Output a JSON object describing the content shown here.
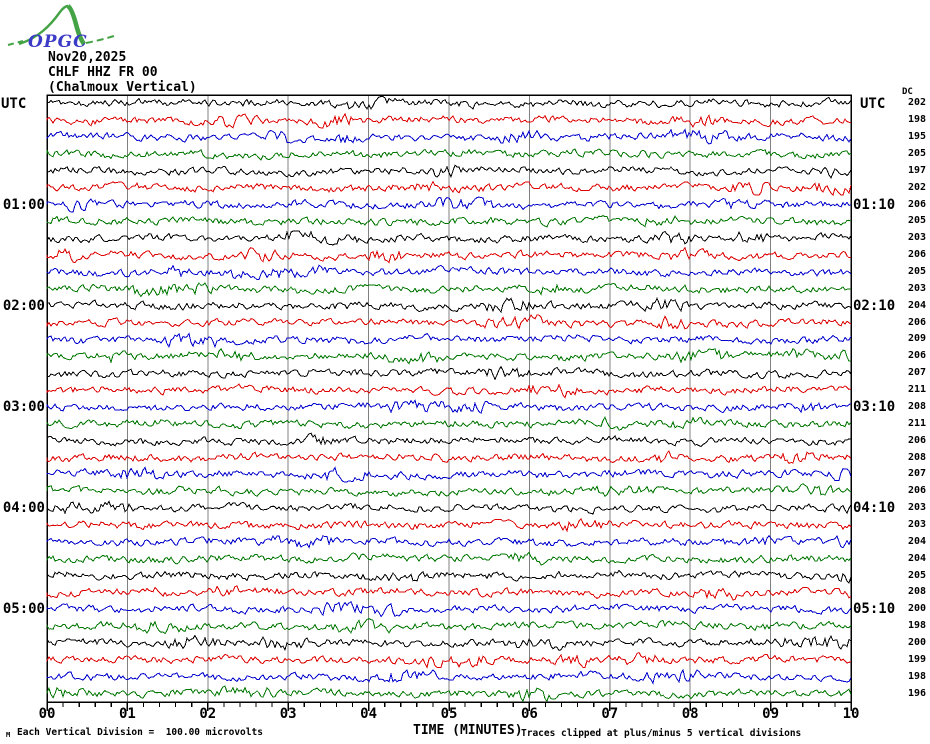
{
  "logo": {
    "text": "OPGC",
    "text_color": "#3b3bc8",
    "curve_color": "#44a344"
  },
  "header": {
    "date": "Nov20,2025",
    "station": "CHLF HHZ FR 00",
    "description": "(Chalmoux Vertical)"
  },
  "axes": {
    "left_header": "UTC",
    "right_header": "UTC",
    "dc_header": "DC",
    "x_label": "TIME (MINUTES)",
    "x_ticks": [
      "00",
      "01",
      "02",
      "03",
      "04",
      "05",
      "06",
      "07",
      "08",
      "09",
      "10"
    ]
  },
  "footer": {
    "scale_note": "Each Vertical Division =  100.00 microvolts",
    "clip_note": "Traces clipped at plus/minus 5 vertical divisions",
    "corner_mark": "M"
  },
  "chart_data": {
    "type": "line",
    "subtype": "helicorder-seismogram",
    "title": "CHLF HHZ FR 00 (Chalmoux Vertical) Nov20,2025",
    "xlabel": "TIME (MINUTES)",
    "x_range_minutes": [
      0,
      10
    ],
    "x_major_tick_minutes": 1,
    "x_minor_ticks_per_major": 5,
    "minutes_per_row": 10,
    "waveform": "continuous ambient seismic noise, no distinct events",
    "amplitude_scale": "Each Vertical Division = 100.00 microvolts",
    "clipping": "plus/minus 5 vertical divisions",
    "grid_color": "#808080",
    "trace_color_cycle": [
      "#000000",
      "#dd0000",
      "#0000cc",
      "#007700"
    ],
    "rows": [
      {
        "utc_start": "00:00",
        "utc_end": "00:10",
        "left_label": "",
        "right_label": "",
        "dc": 202
      },
      {
        "utc_start": "00:10",
        "utc_end": "00:20",
        "left_label": "",
        "right_label": "",
        "dc": 198
      },
      {
        "utc_start": "00:20",
        "utc_end": "00:30",
        "left_label": "",
        "right_label": "",
        "dc": 195
      },
      {
        "utc_start": "00:30",
        "utc_end": "00:40",
        "left_label": "",
        "right_label": "",
        "dc": 205
      },
      {
        "utc_start": "00:40",
        "utc_end": "00:50",
        "left_label": "",
        "right_label": "",
        "dc": 197
      },
      {
        "utc_start": "00:50",
        "utc_end": "01:00",
        "left_label": "",
        "right_label": "",
        "dc": 202
      },
      {
        "utc_start": "01:00",
        "utc_end": "01:10",
        "left_label": "01:00",
        "right_label": "01:10",
        "dc": 206
      },
      {
        "utc_start": "01:10",
        "utc_end": "01:20",
        "left_label": "",
        "right_label": "",
        "dc": 205
      },
      {
        "utc_start": "01:20",
        "utc_end": "01:30",
        "left_label": "",
        "right_label": "",
        "dc": 203
      },
      {
        "utc_start": "01:30",
        "utc_end": "01:40",
        "left_label": "",
        "right_label": "",
        "dc": 206
      },
      {
        "utc_start": "01:40",
        "utc_end": "01:50",
        "left_label": "",
        "right_label": "",
        "dc": 205
      },
      {
        "utc_start": "01:50",
        "utc_end": "02:00",
        "left_label": "",
        "right_label": "",
        "dc": 203
      },
      {
        "utc_start": "02:00",
        "utc_end": "02:10",
        "left_label": "02:00",
        "right_label": "02:10",
        "dc": 204
      },
      {
        "utc_start": "02:10",
        "utc_end": "02:20",
        "left_label": "",
        "right_label": "",
        "dc": 206
      },
      {
        "utc_start": "02:20",
        "utc_end": "02:30",
        "left_label": "",
        "right_label": "",
        "dc": 209
      },
      {
        "utc_start": "02:30",
        "utc_end": "02:40",
        "left_label": "",
        "right_label": "",
        "dc": 206
      },
      {
        "utc_start": "02:40",
        "utc_end": "02:50",
        "left_label": "",
        "right_label": "",
        "dc": 207
      },
      {
        "utc_start": "02:50",
        "utc_end": "03:00",
        "left_label": "",
        "right_label": "",
        "dc": 211
      },
      {
        "utc_start": "03:00",
        "utc_end": "03:10",
        "left_label": "03:00",
        "right_label": "03:10",
        "dc": 208
      },
      {
        "utc_start": "03:10",
        "utc_end": "03:20",
        "left_label": "",
        "right_label": "",
        "dc": 211
      },
      {
        "utc_start": "03:20",
        "utc_end": "03:30",
        "left_label": "",
        "right_label": "",
        "dc": 206
      },
      {
        "utc_start": "03:30",
        "utc_end": "03:40",
        "left_label": "",
        "right_label": "",
        "dc": 208
      },
      {
        "utc_start": "03:40",
        "utc_end": "03:50",
        "left_label": "",
        "right_label": "",
        "dc": 207
      },
      {
        "utc_start": "03:50",
        "utc_end": "04:00",
        "left_label": "",
        "right_label": "",
        "dc": 206
      },
      {
        "utc_start": "04:00",
        "utc_end": "04:10",
        "left_label": "04:00",
        "right_label": "04:10",
        "dc": 203
      },
      {
        "utc_start": "04:10",
        "utc_end": "04:20",
        "left_label": "",
        "right_label": "",
        "dc": 203
      },
      {
        "utc_start": "04:20",
        "utc_end": "04:30",
        "left_label": "",
        "right_label": "",
        "dc": 204
      },
      {
        "utc_start": "04:30",
        "utc_end": "04:40",
        "left_label": "",
        "right_label": "",
        "dc": 204
      },
      {
        "utc_start": "04:40",
        "utc_end": "04:50",
        "left_label": "",
        "right_label": "",
        "dc": 205
      },
      {
        "utc_start": "04:50",
        "utc_end": "05:00",
        "left_label": "",
        "right_label": "",
        "dc": 208
      },
      {
        "utc_start": "05:00",
        "utc_end": "05:10",
        "left_label": "05:00",
        "right_label": "05:10",
        "dc": 200
      },
      {
        "utc_start": "05:10",
        "utc_end": "05:20",
        "left_label": "",
        "right_label": "",
        "dc": 198
      },
      {
        "utc_start": "05:20",
        "utc_end": "05:30",
        "left_label": "",
        "right_label": "",
        "dc": 200
      },
      {
        "utc_start": "05:30",
        "utc_end": "05:40",
        "left_label": "",
        "right_label": "",
        "dc": 199
      },
      {
        "utc_start": "05:40",
        "utc_end": "05:50",
        "left_label": "",
        "right_label": "",
        "dc": 198
      },
      {
        "utc_start": "05:50",
        "utc_end": "06:00",
        "left_label": "",
        "right_label": "",
        "dc": 196
      }
    ]
  }
}
